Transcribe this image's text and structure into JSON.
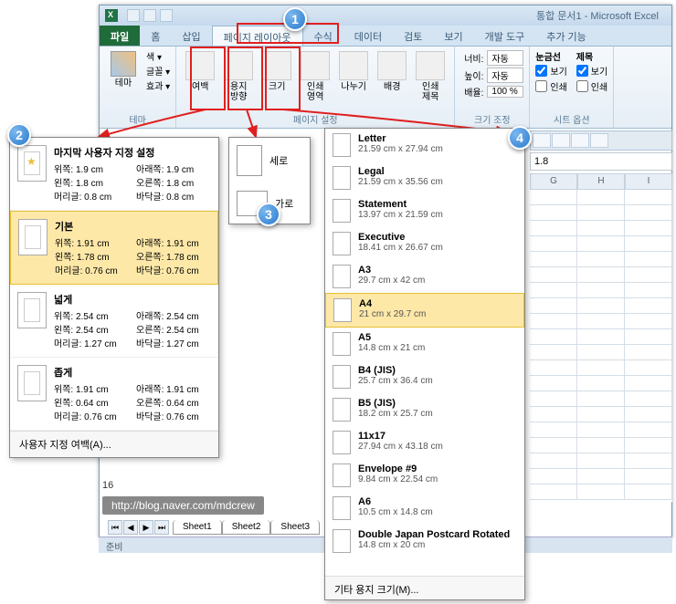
{
  "app": {
    "title": "통합 문서1 - Microsoft Excel"
  },
  "tabs": {
    "file": "파일",
    "home": "홈",
    "insert": "삽입",
    "pagelayout": "페이지 레이아웃",
    "formulas": "수식",
    "data": "데이터",
    "review": "검토",
    "view": "보기",
    "developer": "개발 도구",
    "addins": "추가 기능"
  },
  "ribbon": {
    "theme_group": "테마",
    "theme": "테마",
    "colors": "색 ▾",
    "fonts": "글꼴 ▾",
    "effects": "효과 ▾",
    "pagesetup_group": "페이지 설정",
    "margins": "여백",
    "orientation": "용지\n방향",
    "size": "크기",
    "printarea": "인쇄\n영역",
    "breaks": "나누기",
    "background": "배경",
    "printtitles": "인쇄\n제목",
    "scalefit_group": "크기 조정",
    "width": "너비:",
    "height": "높이:",
    "scale": "배율:",
    "auto": "자동",
    "scale_val": "100 %",
    "sheetopts_group": "시트 옵션",
    "gridlines": "눈금선",
    "headings": "제목",
    "view_chk": "보기",
    "print_chk": "인쇄"
  },
  "margins_popup": {
    "last": {
      "title": "마지막 사용자 지정 설정",
      "top": "위쪽:",
      "top_v": "1.9 cm",
      "bottom": "아래쪽:",
      "bottom_v": "1.9 cm",
      "left": "왼쪽:",
      "left_v": "1.8 cm",
      "right": "오른쪽:",
      "right_v": "1.8 cm",
      "header": "머리글:",
      "header_v": "0.8 cm",
      "footer": "바닥글:",
      "footer_v": "0.8 cm"
    },
    "normal": {
      "title": "기본",
      "top": "위쪽:",
      "top_v": "1.91 cm",
      "bottom": "아래쪽:",
      "bottom_v": "1.91 cm",
      "left": "왼쪽:",
      "left_v": "1.78 cm",
      "right": "오른쪽:",
      "right_v": "1.78 cm",
      "header": "머리글:",
      "header_v": "0.76 cm",
      "footer": "바닥글:",
      "footer_v": "0.76 cm"
    },
    "wide": {
      "title": "넓게",
      "top": "위쪽:",
      "top_v": "2.54 cm",
      "bottom": "아래쪽:",
      "bottom_v": "2.54 cm",
      "left": "왼쪽:",
      "left_v": "2.54 cm",
      "right": "오른쪽:",
      "right_v": "2.54 cm",
      "header": "머리글:",
      "header_v": "1.27 cm",
      "footer": "바닥글:",
      "footer_v": "1.27 cm"
    },
    "narrow": {
      "title": "좁게",
      "top": "위쪽:",
      "top_v": "1.91 cm",
      "bottom": "아래쪽:",
      "bottom_v": "1.91 cm",
      "left": "왼쪽:",
      "left_v": "0.64 cm",
      "right": "오른쪽:",
      "right_v": "0.64 cm",
      "header": "머리글:",
      "header_v": "0.76 cm",
      "footer": "바닥글:",
      "footer_v": "0.76 cm"
    },
    "custom": "사용자 지정 여백(A)..."
  },
  "orient_popup": {
    "portrait": "세로",
    "landscape": "가로"
  },
  "size_popup": {
    "items": [
      {
        "nm": "Letter",
        "dim": "21.59 cm x 27.94 cm"
      },
      {
        "nm": "Legal",
        "dim": "21.59 cm x 35.56 cm"
      },
      {
        "nm": "Statement",
        "dim": "13.97 cm x 21.59 cm"
      },
      {
        "nm": "Executive",
        "dim": "18.41 cm x 26.67 cm"
      },
      {
        "nm": "A3",
        "dim": "29.7 cm x 42 cm"
      },
      {
        "nm": "A4",
        "dim": "21 cm x 29.7 cm",
        "sel": true
      },
      {
        "nm": "A5",
        "dim": "14.8 cm x 21 cm"
      },
      {
        "nm": "B4 (JIS)",
        "dim": "25.7 cm x 36.4 cm"
      },
      {
        "nm": "B5 (JIS)",
        "dim": "18.2 cm x 25.7 cm"
      },
      {
        "nm": "11x17",
        "dim": "27.94 cm x 43.18 cm"
      },
      {
        "nm": "Envelope #9",
        "dim": "9.84 cm x 22.54 cm"
      },
      {
        "nm": "A6",
        "dim": "10.5 cm x 14.8 cm"
      },
      {
        "nm": "Double Japan Postcard Rotated",
        "dim": "14.8 cm x 20 cm"
      }
    ],
    "more": "기타 용지 크기(M)..."
  },
  "cols": {
    "g": "G",
    "h": "H",
    "i": "I"
  },
  "namebox": {
    "ref": "1.8"
  },
  "sheets": {
    "s1": "Sheet1",
    "s2": "Sheet2",
    "s3": "Sheet3"
  },
  "status": "준비",
  "url": "http://blog.naver.com/mdcrew",
  "row16": "16",
  "badges": {
    "b1": "1",
    "b2": "2",
    "b3": "3",
    "b4": "4"
  }
}
